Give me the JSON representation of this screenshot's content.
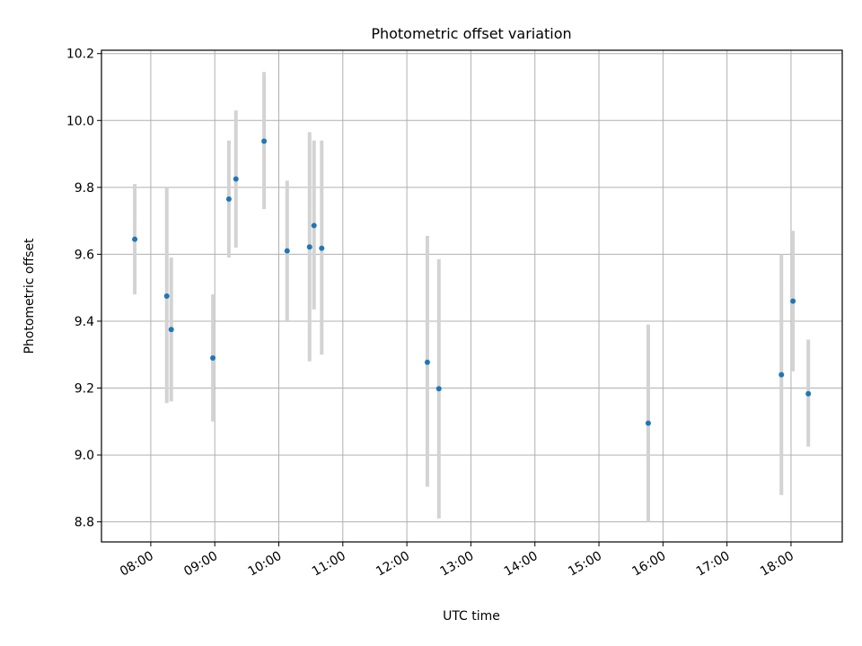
{
  "chart_data": {
    "type": "scatter",
    "title": "Photometric offset variation",
    "xlabel": "UTC time",
    "ylabel": "Photometric offset",
    "x_unit": "hours (UTC)",
    "xlim": [
      7.23,
      18.8
    ],
    "ylim": [
      8.74,
      10.21
    ],
    "grid": true,
    "marker_color": "#1f77b4",
    "errorbar_color": "#d3d3d3",
    "x_ticks": [
      {
        "value": 8,
        "label": "08:00"
      },
      {
        "value": 9,
        "label": "09:00"
      },
      {
        "value": 10,
        "label": "10:00"
      },
      {
        "value": 11,
        "label": "11:00"
      },
      {
        "value": 12,
        "label": "12:00"
      },
      {
        "value": 13,
        "label": "13:00"
      },
      {
        "value": 14,
        "label": "14:00"
      },
      {
        "value": 15,
        "label": "15:00"
      },
      {
        "value": 16,
        "label": "16:00"
      },
      {
        "value": 17,
        "label": "17:00"
      },
      {
        "value": 18,
        "label": "18:00"
      }
    ],
    "y_ticks": [
      {
        "value": 8.8,
        "label": "8.8"
      },
      {
        "value": 9.0,
        "label": "9.0"
      },
      {
        "value": 9.2,
        "label": "9.2"
      },
      {
        "value": 9.4,
        "label": "9.4"
      },
      {
        "value": 9.6,
        "label": "9.6"
      },
      {
        "value": 9.8,
        "label": "9.8"
      },
      {
        "value": 10.0,
        "label": "10.0"
      },
      {
        "value": 10.2,
        "label": "10.2"
      }
    ],
    "points": [
      {
        "x": 7.75,
        "y": 9.645,
        "ylow": 9.48,
        "yhigh": 9.81
      },
      {
        "x": 8.25,
        "y": 9.475,
        "ylow": 9.155,
        "yhigh": 9.8
      },
      {
        "x": 8.32,
        "y": 9.375,
        "ylow": 9.16,
        "yhigh": 9.59
      },
      {
        "x": 8.97,
        "y": 9.29,
        "ylow": 9.1,
        "yhigh": 9.48
      },
      {
        "x": 9.22,
        "y": 9.765,
        "ylow": 9.59,
        "yhigh": 9.94
      },
      {
        "x": 9.33,
        "y": 9.825,
        "ylow": 9.62,
        "yhigh": 10.03
      },
      {
        "x": 9.77,
        "y": 9.938,
        "ylow": 9.735,
        "yhigh": 10.145
      },
      {
        "x": 10.13,
        "y": 9.61,
        "ylow": 9.4,
        "yhigh": 9.82
      },
      {
        "x": 10.48,
        "y": 9.622,
        "ylow": 9.28,
        "yhigh": 9.965
      },
      {
        "x": 10.55,
        "y": 9.686,
        "ylow": 9.435,
        "yhigh": 9.94
      },
      {
        "x": 10.67,
        "y": 9.618,
        "ylow": 9.3,
        "yhigh": 9.94
      },
      {
        "x": 12.32,
        "y": 9.277,
        "ylow": 8.905,
        "yhigh": 9.655
      },
      {
        "x": 12.5,
        "y": 9.198,
        "ylow": 8.81,
        "yhigh": 9.585
      },
      {
        "x": 15.77,
        "y": 9.095,
        "ylow": 8.8,
        "yhigh": 9.39
      },
      {
        "x": 17.85,
        "y": 9.24,
        "ylow": 8.88,
        "yhigh": 9.6
      },
      {
        "x": 18.03,
        "y": 9.46,
        "ylow": 9.25,
        "yhigh": 9.67
      },
      {
        "x": 18.27,
        "y": 9.183,
        "ylow": 9.025,
        "yhigh": 9.345
      }
    ]
  }
}
